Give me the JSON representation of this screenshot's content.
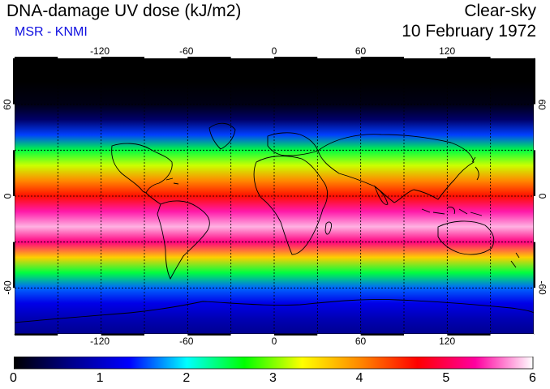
{
  "header": {
    "title": "DNA-damage UV dose (kJ/m2)",
    "source": "MSR - KNMI",
    "condition": "Clear-sky",
    "date": "10 February 1972",
    "source_color": "#1010e0"
  },
  "map": {
    "projection": "equirectangular",
    "lon_range": [
      -180,
      180
    ],
    "lat_range": [
      -90,
      90
    ],
    "lon_ticks": [
      "-120",
      "-60",
      "0",
      "60",
      "120"
    ],
    "lat_ticks": [
      "60",
      "0",
      "-60"
    ],
    "lat_ticks_right": [
      "60",
      "0",
      "-60"
    ],
    "grid": true,
    "grid_spacing_deg": 30,
    "coastlines": true
  },
  "colorbar": {
    "min": 0,
    "max": 6,
    "labels": [
      "0",
      "1",
      "2",
      "3",
      "4",
      "5",
      "6"
    ],
    "colors": [
      "#000000",
      "#00008b",
      "#0000ff",
      "#00ffff",
      "#00ff00",
      "#ffff00",
      "#ff8800",
      "#ff0000",
      "#ff00a0",
      "#ffffff"
    ]
  },
  "chart_data": {
    "type": "heatmap",
    "title": "DNA-damage UV dose (kJ/m2)",
    "x_range": [
      -180,
      180
    ],
    "y_range": [
      -90,
      90
    ],
    "value_range": [
      0,
      6
    ],
    "zonal_profile": {
      "lat": [
        90,
        75,
        60,
        50,
        40,
        30,
        20,
        10,
        0,
        -10,
        -20,
        -30,
        -40,
        -50,
        -60,
        -70,
        -80,
        -90
      ],
      "value": [
        0.0,
        0.0,
        0.1,
        0.5,
        1.5,
        2.5,
        3.2,
        4.0,
        4.6,
        5.4,
        5.8,
        5.2,
        3.6,
        2.5,
        1.6,
        1.2,
        0.9,
        0.7
      ]
    }
  }
}
